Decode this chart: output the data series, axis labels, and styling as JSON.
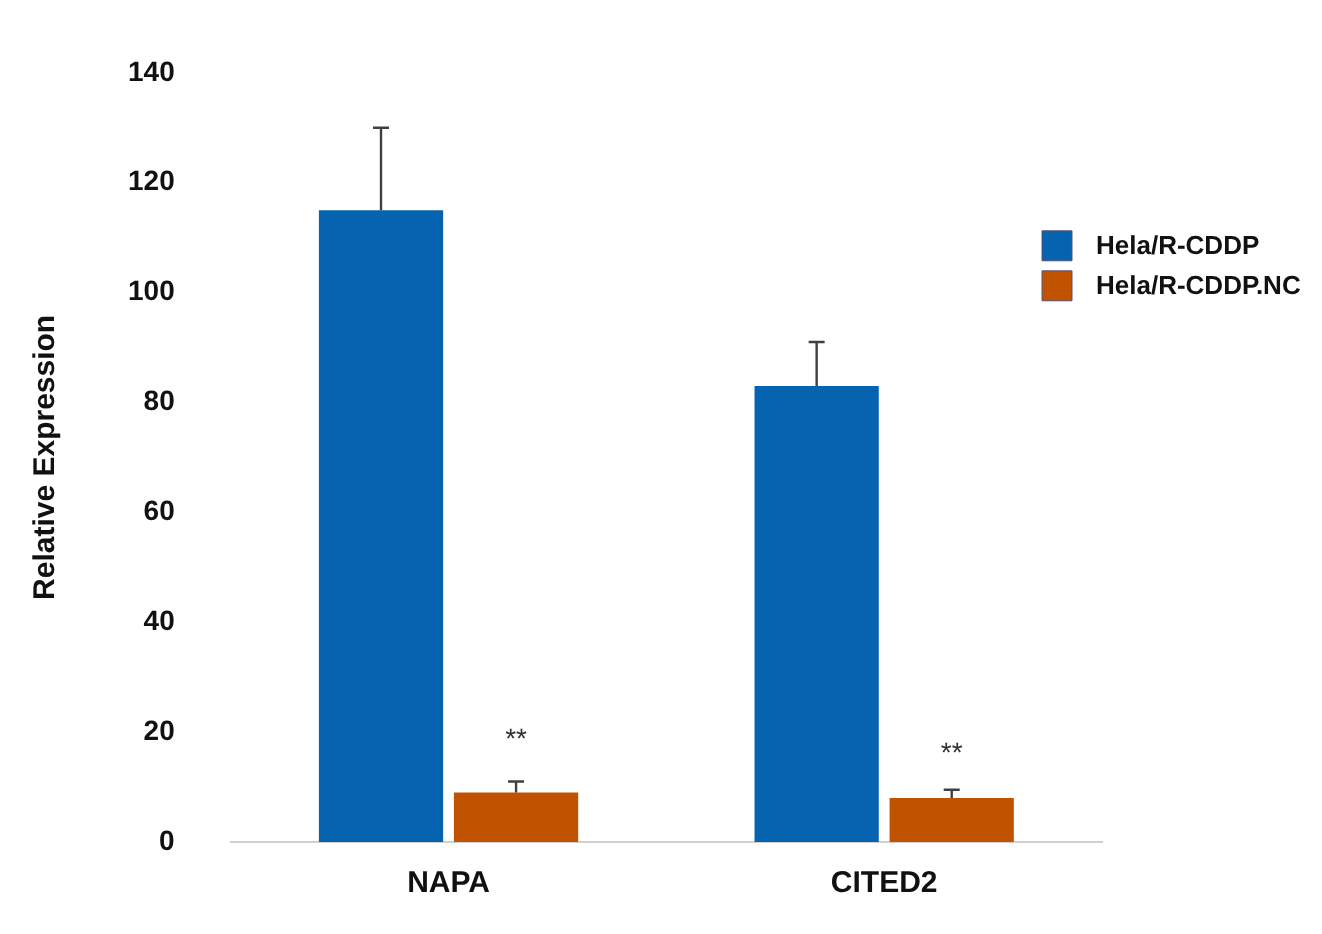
{
  "chart_data": {
    "type": "bar",
    "ylabel": "Relative Expression",
    "categories": [
      "NAPA",
      "CITED2"
    ],
    "series": [
      {
        "name": "Hela/R-CDDP",
        "color": "#0563b0",
        "values": [
          115,
          83
        ],
        "errors": [
          [
            115,
            130
          ],
          [
            83,
            91
          ]
        ]
      },
      {
        "name": "Hela/R-CDDP.NC",
        "color": "#c05200",
        "values": [
          9,
          8
        ],
        "errors": [
          [
            9,
            11
          ],
          [
            8,
            9.5
          ]
        ]
      }
    ],
    "ylim": [
      0,
      140
    ],
    "yticks": [
      0,
      20,
      40,
      60,
      80,
      100,
      120,
      140
    ],
    "grid": false,
    "legend": "right",
    "annotations": [
      {
        "text": "**",
        "x": "NAPA",
        "y": 18.5
      },
      {
        "text": "**",
        "x": "CITED2",
        "y": 16
      }
    ]
  }
}
